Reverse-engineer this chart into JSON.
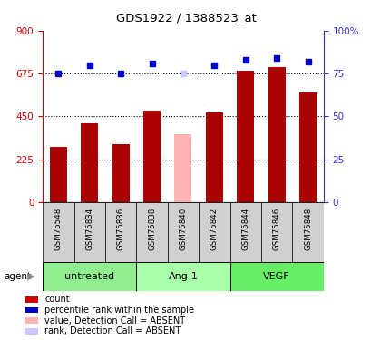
{
  "title": "GDS1922 / 1388523_at",
  "samples": [
    "GSM75548",
    "GSM75834",
    "GSM75836",
    "GSM75838",
    "GSM75840",
    "GSM75842",
    "GSM75844",
    "GSM75846",
    "GSM75848"
  ],
  "bar_values": [
    290,
    415,
    305,
    480,
    355,
    470,
    690,
    710,
    575
  ],
  "bar_colors": [
    "#aa0000",
    "#aa0000",
    "#aa0000",
    "#aa0000",
    "#ffb3b3",
    "#aa0000",
    "#aa0000",
    "#aa0000",
    "#aa0000"
  ],
  "rank_values": [
    75,
    80,
    75,
    81,
    75,
    80,
    83,
    84,
    82
  ],
  "rank_colors": [
    "#0000cc",
    "#0000cc",
    "#0000cc",
    "#0000cc",
    "#c8c8ff",
    "#0000cc",
    "#0000cc",
    "#0000cc",
    "#0000cc"
  ],
  "groups": [
    {
      "label": "untreated",
      "start": 0,
      "end": 3
    },
    {
      "label": "Ang-1",
      "start": 3,
      "end": 6
    },
    {
      "label": "VEGF",
      "start": 6,
      "end": 9
    }
  ],
  "group_colors": [
    "#90ee90",
    "#aaffaa",
    "#66ee66"
  ],
  "ylim_left": [
    0,
    900
  ],
  "ylim_right": [
    0,
    100
  ],
  "yticks_left": [
    0,
    225,
    450,
    675,
    900
  ],
  "yticks_right": [
    0,
    25,
    50,
    75,
    100
  ],
  "ytick_labels_right": [
    "0",
    "25",
    "50",
    "75",
    "100%"
  ],
  "left_axis_color": "#cc0000",
  "right_axis_color": "#3333cc",
  "tick_bg_color": "#d0d0d0",
  "legend_items": [
    {
      "label": "count",
      "color": "#cc0000"
    },
    {
      "label": "percentile rank within the sample",
      "color": "#0000cc"
    },
    {
      "label": "value, Detection Call = ABSENT",
      "color": "#ffb3b3"
    },
    {
      "label": "rank, Detection Call = ABSENT",
      "color": "#c8c8ff"
    }
  ]
}
